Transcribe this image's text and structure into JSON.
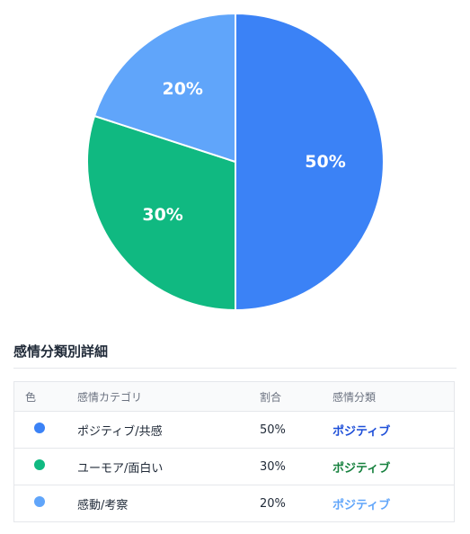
{
  "chart_data": {
    "type": "pie",
    "title": "",
    "slices": [
      {
        "label": "ポジティブ/共感",
        "value": 50,
        "display": "50%",
        "color": "#3b82f6"
      },
      {
        "label": "ユーモア/面白い",
        "value": 30,
        "display": "30%",
        "color": "#10b981"
      },
      {
        "label": "感動/考察",
        "value": 20,
        "display": "20%",
        "color": "#60a5fa"
      }
    ]
  },
  "details": {
    "title": "感情分類別詳細",
    "headers": {
      "color": "色",
      "category": "感情カテゴリ",
      "ratio": "割合",
      "emotion": "感情分類"
    },
    "rows": [
      {
        "color": "#3b82f6",
        "category": "ポジティブ/共感",
        "ratio": "50%",
        "emotion": "ポジティブ",
        "emotion_color": "#1d4ed8"
      },
      {
        "color": "#10b981",
        "category": "ユーモア/面白い",
        "ratio": "30%",
        "emotion": "ポジティブ",
        "emotion_color": "#15803d"
      },
      {
        "color": "#60a5fa",
        "category": "感動/考察",
        "ratio": "20%",
        "emotion": "ポジティブ",
        "emotion_color": "#60a5fa"
      }
    ]
  }
}
